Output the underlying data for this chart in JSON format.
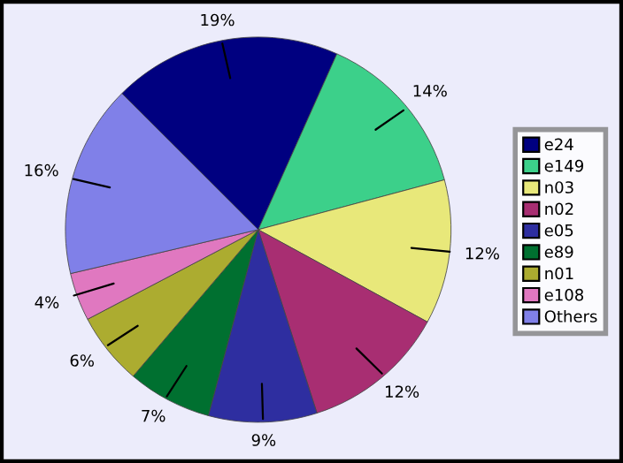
{
  "chart_data": {
    "type": "pie",
    "categories": [
      "e24",
      "e149",
      "n03",
      "n02",
      "e05",
      "e89",
      "n01",
      "e108",
      "Others"
    ],
    "values": [
      19,
      14,
      12,
      12,
      9,
      7,
      6,
      4,
      16
    ],
    "value_labels": [
      "19%",
      "14%",
      "12%",
      "12%",
      "9%",
      "7%",
      "6%",
      "4%",
      "16%"
    ],
    "colors": [
      "#000080",
      "#3cd08a",
      "#e8e87a",
      "#a82e72",
      "#2e2ea0",
      "#007030",
      "#acac30",
      "#e078c0",
      "#8080e8"
    ],
    "legend": "right"
  }
}
